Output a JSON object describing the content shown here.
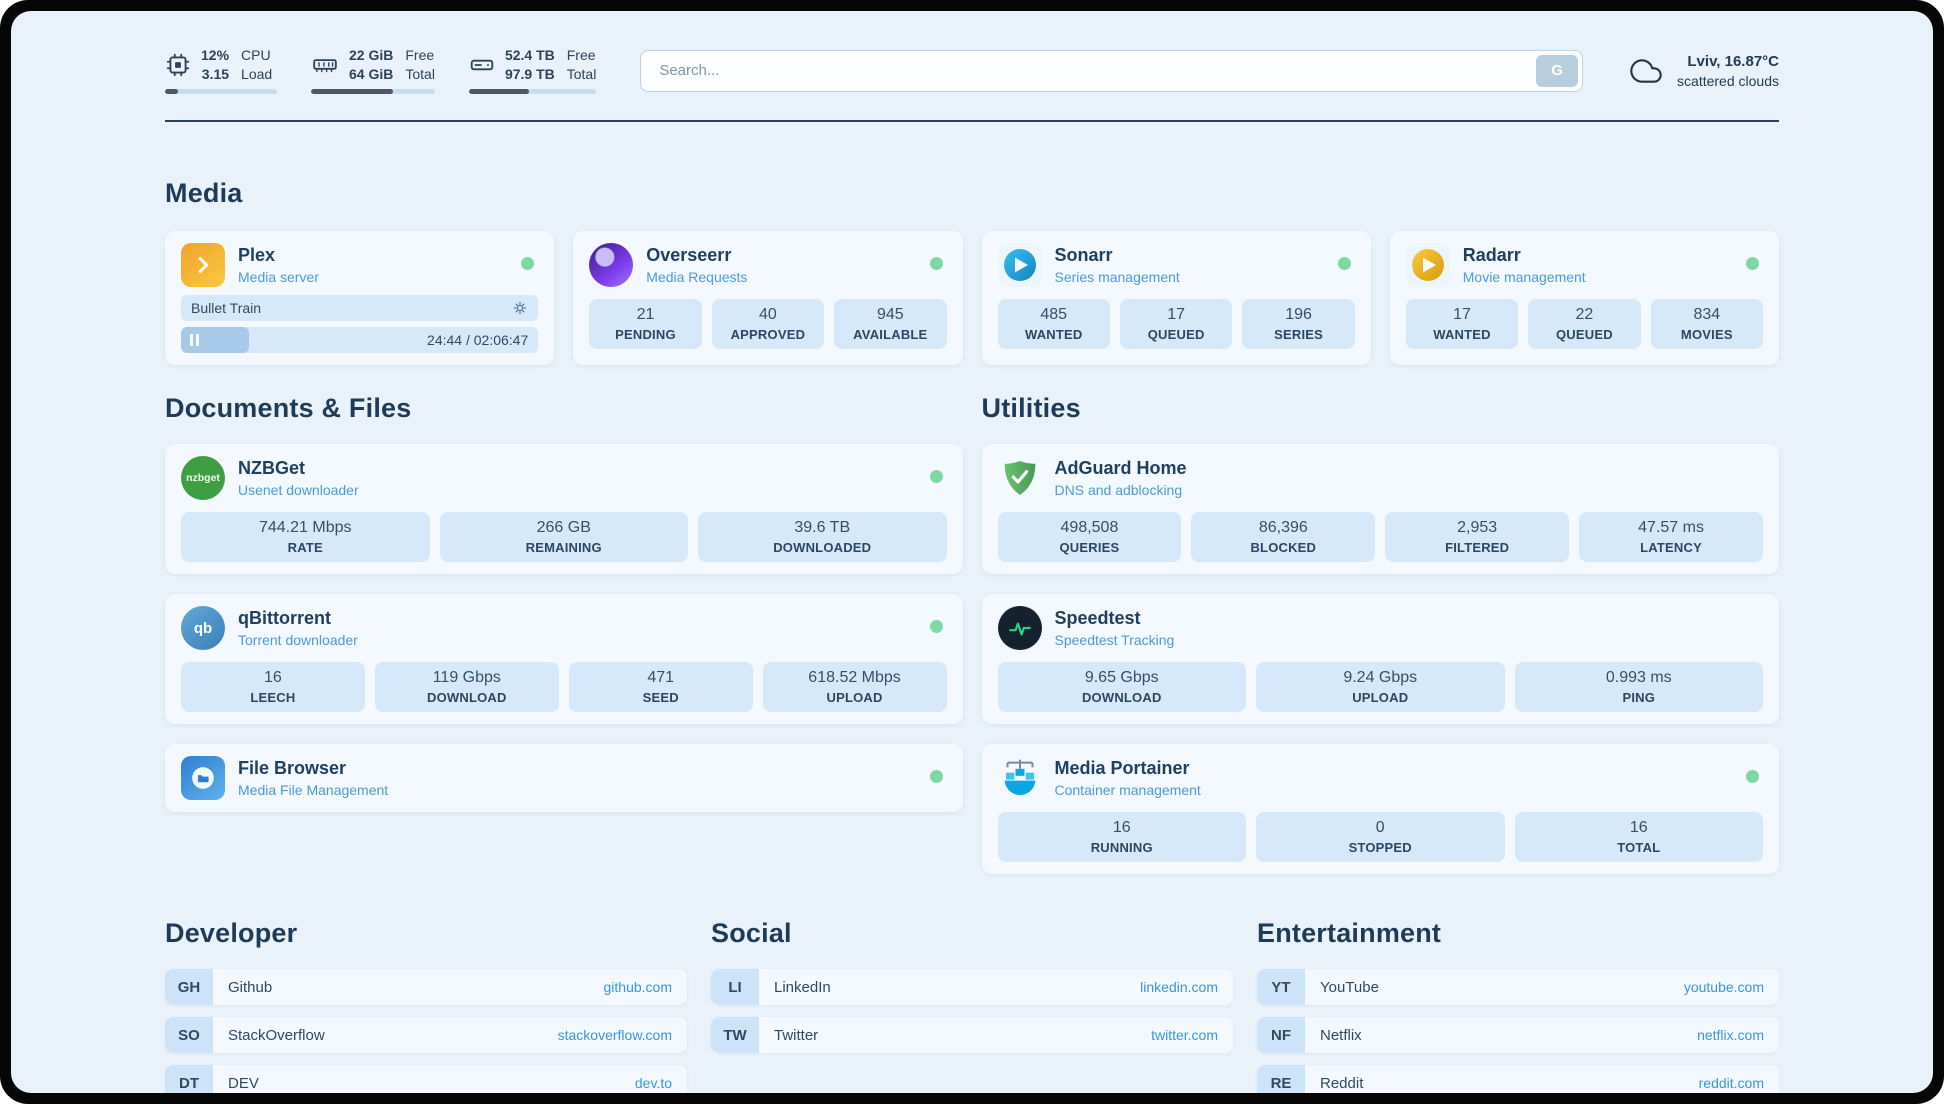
{
  "colors": {
    "page_background": "#e9f2fa",
    "card_background": "#f3f9fe",
    "stat_background": "#d5e9fa",
    "accent_blue": "#4d9ad8",
    "link_blue": "#3b95de",
    "status_online_green": "#7ed9a2",
    "text_dark": "#1e3c58"
  },
  "header": {
    "monitors": [
      {
        "icon": "cpu-icon",
        "rows": [
          {
            "value": "12%",
            "label": "CPU"
          },
          {
            "value": "3.15",
            "label": "Load"
          }
        ],
        "progress_pct": 12
      },
      {
        "icon": "ram-icon",
        "rows": [
          {
            "value": "22 GiB",
            "label": "Free"
          },
          {
            "value": "64 GiB",
            "label": "Total"
          }
        ],
        "progress_pct": 66
      },
      {
        "icon": "disk-icon",
        "rows": [
          {
            "value": "52.4 TB",
            "label": "Free"
          },
          {
            "value": "97.9 TB",
            "label": "Total"
          }
        ],
        "progress_pct": 47
      }
    ],
    "search": {
      "placeholder": "Search...",
      "engine_button": "G"
    },
    "weather": {
      "icon": "cloud-icon",
      "location": "Lviv, 16.87°C",
      "condition": "scattered clouds"
    }
  },
  "media": {
    "title": "Media",
    "plex": {
      "icon": "plex-icon",
      "name": "Plex",
      "subtitle": "Media server",
      "online": true,
      "now_playing": {
        "title": "Bullet Train",
        "time": "24:44 / 02:06:47",
        "progress_pct": 19
      }
    },
    "overseerr": {
      "icon": "overseerr-icon",
      "name": "Overseerr",
      "subtitle": "Media Requests",
      "online": true,
      "stats": [
        {
          "value": "21",
          "label": "PENDING"
        },
        {
          "value": "40",
          "label": "APPROVED"
        },
        {
          "value": "945",
          "label": "AVAILABLE"
        }
      ]
    },
    "sonarr": {
      "icon": "sonarr-icon",
      "name": "Sonarr",
      "subtitle": "Series management",
      "online": true,
      "stats": [
        {
          "value": "485",
          "label": "WANTED"
        },
        {
          "value": "17",
          "label": "QUEUED"
        },
        {
          "value": "196",
          "label": "SERIES"
        }
      ]
    },
    "radarr": {
      "icon": "radarr-icon",
      "name": "Radarr",
      "subtitle": "Movie management",
      "online": true,
      "stats": [
        {
          "value": "17",
          "label": "WANTED"
        },
        {
          "value": "22",
          "label": "QUEUED"
        },
        {
          "value": "834",
          "label": "MOVIES"
        }
      ]
    }
  },
  "documents": {
    "title": "Documents & Files",
    "nzbget": {
      "icon": "nzbget-icon",
      "icon_text": "nzbget",
      "name": "NZBGet",
      "subtitle": "Usenet downloader",
      "online": true,
      "stats": [
        {
          "value": "744.21 Mbps",
          "label": "RATE"
        },
        {
          "value": "266 GB",
          "label": "REMAINING"
        },
        {
          "value": "39.6 TB",
          "label": "DOWNLOADED"
        }
      ]
    },
    "qbittorrent": {
      "icon": "qbittorrent-icon",
      "icon_text": "qb",
      "name": "qBittorrent",
      "subtitle": "Torrent downloader",
      "online": true,
      "stats": [
        {
          "value": "16",
          "label": "LEECH"
        },
        {
          "value": "119 Gbps",
          "label": "DOWNLOAD"
        },
        {
          "value": "471",
          "label": "SEED"
        },
        {
          "value": "618.52 Mbps",
          "label": "UPLOAD"
        }
      ]
    },
    "filebrowser": {
      "icon": "filebrowser-icon",
      "name": "File Browser",
      "subtitle": "Media File Management",
      "online": true
    }
  },
  "utilities": {
    "title": "Utilities",
    "adguard": {
      "icon": "adguard-shield-icon",
      "name": "AdGuard Home",
      "subtitle": "DNS and adblocking",
      "stats": [
        {
          "value": "498,508",
          "label": "QUERIES"
        },
        {
          "value": "86,396",
          "label": "BLOCKED"
        },
        {
          "value": "2,953",
          "label": "FILTERED"
        },
        {
          "value": "47.57 ms",
          "label": "LATENCY"
        }
      ]
    },
    "speedtest": {
      "icon": "speedtest-icon",
      "name": "Speedtest",
      "subtitle": "Speedtest Tracking",
      "stats": [
        {
          "value": "9.65 Gbps",
          "label": "DOWNLOAD"
        },
        {
          "value": "9.24 Gbps",
          "label": "UPLOAD"
        },
        {
          "value": "0.993 ms",
          "label": "PING"
        }
      ]
    },
    "portainer": {
      "icon": "portainer-icon",
      "name": "Media Portainer",
      "subtitle": "Container management",
      "online": true,
      "stats": [
        {
          "value": "16",
          "label": "RUNNING"
        },
        {
          "value": "0",
          "label": "STOPPED"
        },
        {
          "value": "16",
          "label": "TOTAL"
        }
      ]
    }
  },
  "bookmarks": [
    {
      "title": "Developer",
      "items": [
        {
          "abbr": "GH",
          "name": "Github",
          "url": "github.com"
        },
        {
          "abbr": "SO",
          "name": "StackOverflow",
          "url": "stackoverflow.com"
        },
        {
          "abbr": "DT",
          "name": "DEV",
          "url": "dev.to"
        }
      ]
    },
    {
      "title": "Social",
      "items": [
        {
          "abbr": "LI",
          "name": "LinkedIn",
          "url": "linkedin.com"
        },
        {
          "abbr": "TW",
          "name": "Twitter",
          "url": "twitter.com"
        }
      ]
    },
    {
      "title": "Entertainment",
      "items": [
        {
          "abbr": "YT",
          "name": "YouTube",
          "url": "youtube.com"
        },
        {
          "abbr": "NF",
          "name": "Netflix",
          "url": "netflix.com"
        },
        {
          "abbr": "RE",
          "name": "Reddit",
          "url": "reddit.com"
        }
      ]
    }
  ]
}
